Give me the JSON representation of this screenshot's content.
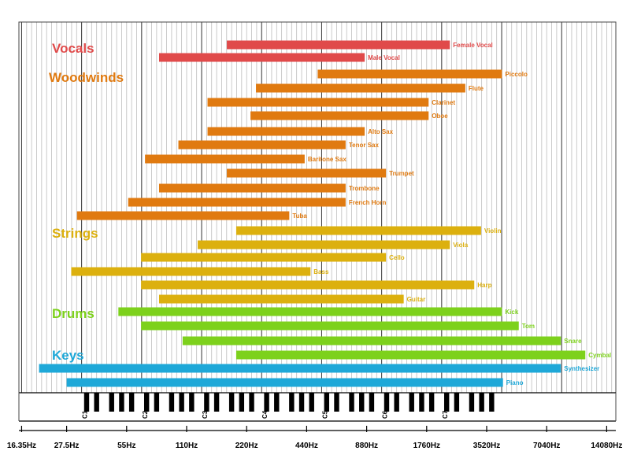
{
  "chart_data": {
    "type": "bar",
    "title": "",
    "xscale": "log2",
    "xunit": "Hz",
    "xlim": [
      20,
      16000
    ],
    "x_tick_labels": [
      "16.35Hz",
      "27.5Hz",
      "55Hz",
      "110Hz",
      "220Hz",
      "440Hz",
      "880Hz",
      "1760Hz",
      "3520Hz",
      "7040Hz",
      "14080Hz"
    ],
    "x_tick_values": [
      16.35,
      27.5,
      55,
      110,
      220,
      440,
      880,
      1760,
      3520,
      7040,
      14080
    ],
    "octave_labels": [
      "C1",
      "C2",
      "C3",
      "C4",
      "C5",
      "C6",
      "C7"
    ],
    "octave_values": [
      32.7,
      65.4,
      130.8,
      261.6,
      523.3,
      1046.5,
      2093
    ],
    "categories": [
      {
        "name": "Vocals",
        "color": "#e04a4a"
      },
      {
        "name": "Woodwinds",
        "color": "#e07a10"
      },
      {
        "name": "Strings",
        "color": "#dcb00e"
      },
      {
        "name": "Drums",
        "color": "#7dd11c"
      },
      {
        "name": "Keys",
        "color": "#1ea8d8"
      }
    ],
    "series": [
      {
        "name": "Female Vocal",
        "category": "Vocals",
        "low": 175,
        "high": 2300
      },
      {
        "name": "Male Vocal",
        "category": "Vocals",
        "low": 80,
        "high": 860
      },
      {
        "name": "Piccolo",
        "category": "Woodwinds",
        "low": 500,
        "high": 4200
      },
      {
        "name": "Flute",
        "category": "Woodwinds",
        "low": 245,
        "high": 2750
      },
      {
        "name": "Clarinet",
        "category": "Woodwinds",
        "low": 140,
        "high": 1800
      },
      {
        "name": "Oboe",
        "category": "Woodwinds",
        "low": 230,
        "high": 1800
      },
      {
        "name": "Alto Sax",
        "category": "Woodwinds",
        "low": 140,
        "high": 860
      },
      {
        "name": "Tenor Sax",
        "category": "Woodwinds",
        "low": 100,
        "high": 690
      },
      {
        "name": "Baritone Sax",
        "category": "Woodwinds",
        "low": 68,
        "high": 430
      },
      {
        "name": "Trumpet",
        "category": "Woodwinds",
        "low": 175,
        "high": 1100
      },
      {
        "name": "Trombone",
        "category": "Woodwinds",
        "low": 80,
        "high": 690
      },
      {
        "name": "French Horn",
        "category": "Woodwinds",
        "low": 56,
        "high": 690
      },
      {
        "name": "Tuba",
        "category": "Woodwinds",
        "low": 31,
        "high": 360
      },
      {
        "name": "Violin",
        "category": "Strings",
        "low": 195,
        "high": 3300
      },
      {
        "name": "Viola",
        "category": "Strings",
        "low": 125,
        "high": 2300
      },
      {
        "name": "Cello",
        "category": "Strings",
        "low": 65,
        "high": 1100
      },
      {
        "name": "Bass",
        "category": "Strings",
        "low": 29,
        "high": 460
      },
      {
        "name": "Harp",
        "category": "Strings",
        "low": 65,
        "high": 3050
      },
      {
        "name": "Guitar",
        "category": "Strings",
        "low": 80,
        "high": 1350
      },
      {
        "name": "Kick",
        "category": "Drums",
        "low": 50,
        "high": 4200
      },
      {
        "name": "Tom",
        "category": "Drums",
        "low": 65,
        "high": 5100
      },
      {
        "name": "Snare",
        "category": "Drums",
        "low": 105,
        "high": 8300
      },
      {
        "name": "Cymbal",
        "category": "Drums",
        "low": 195,
        "high": 11000
      },
      {
        "name": "Synthesizer",
        "category": "Keys",
        "low": 20,
        "high": 8300
      },
      {
        "name": "Piano",
        "category": "Keys",
        "low": 27.5,
        "high": 4250
      }
    ]
  }
}
